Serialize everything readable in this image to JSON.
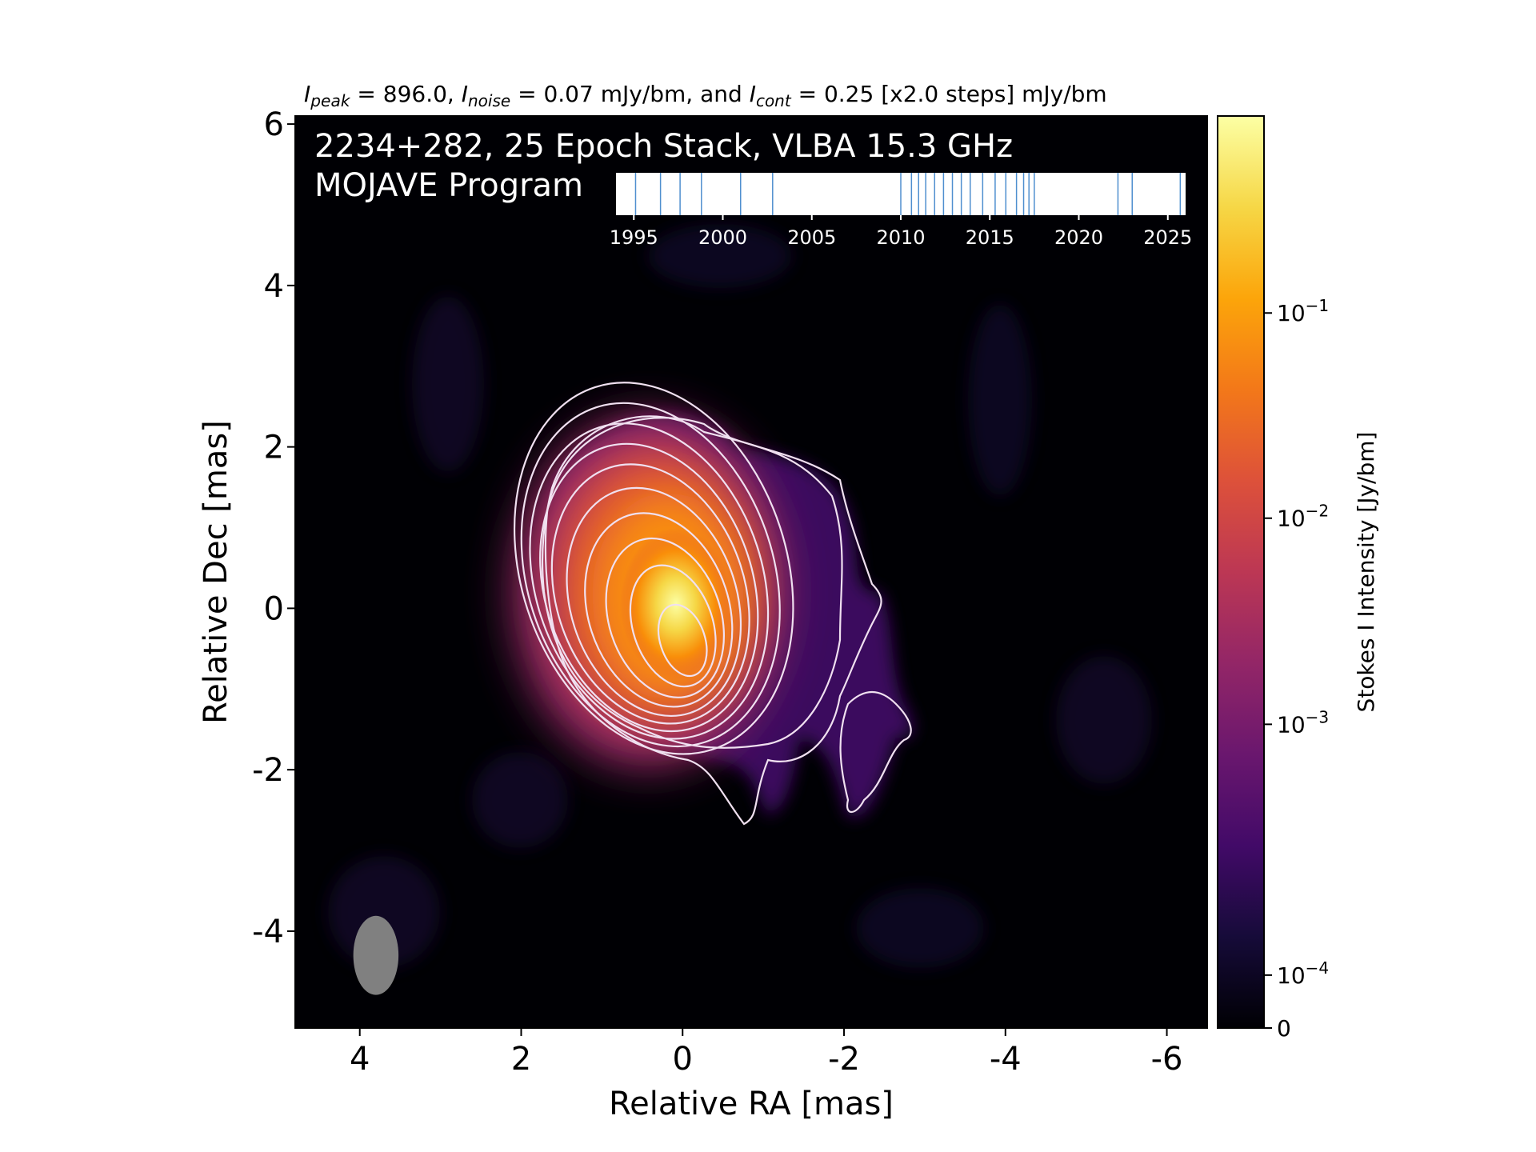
{
  "chart_data": {
    "type": "heatmap",
    "title_parts": {
      "peak_sym": "I",
      "peak_sub": "peak",
      "peak_text": " = 896.0, ",
      "noise_sym": "I",
      "noise_sub": "noise",
      "noise_text": " = 0.07 mJy/bm, and ",
      "cont_sym": "I",
      "cont_sub": "cont",
      "cont_text": " = 0.25 [x2.0 steps] mJy/bm"
    },
    "annotation_line1": "2234+282, 25 Epoch Stack, VLBA 15.3 GHz",
    "annotation_line2": "MOJAVE Program",
    "xlabel": "Relative RA [mas]",
    "ylabel": "Relative Dec [mas]",
    "xlim": [
      4.8,
      -6.5
    ],
    "ylim": [
      -5.2,
      6.1
    ],
    "xticks": [
      {
        "value": 4,
        "label": "4"
      },
      {
        "value": 2,
        "label": "2"
      },
      {
        "value": 0,
        "label": "0"
      },
      {
        "value": -2,
        "label": "-2"
      },
      {
        "value": -4,
        "label": "-4"
      },
      {
        "value": -6,
        "label": "-6"
      }
    ],
    "yticks": [
      {
        "value": 6,
        "label": "6"
      },
      {
        "value": 4,
        "label": "4"
      },
      {
        "value": 2,
        "label": "2"
      },
      {
        "value": 0,
        "label": "0"
      },
      {
        "value": -2,
        "label": "-2"
      },
      {
        "value": -4,
        "label": "-4"
      }
    ],
    "colorbar": {
      "label": "Stokes I Intensity [Jy/bm]",
      "colormap": "inferno",
      "scale": "symlog",
      "ticks": [
        {
          "frac": 0.0,
          "base": "0",
          "exp": ""
        },
        {
          "frac": 0.058,
          "base": "10",
          "exp": "−4"
        },
        {
          "frac": 0.333,
          "base": "10",
          "exp": "−3"
        },
        {
          "frac": 0.559,
          "base": "10",
          "exp": "−2"
        },
        {
          "frac": 0.784,
          "base": "10",
          "exp": "−1"
        }
      ]
    },
    "peak_position": [
      0.0,
      0.0
    ],
    "contour_color": "#f0e0f0",
    "beam": {
      "ra": 3.8,
      "dec": -4.3,
      "width_mas": 0.56,
      "height_mas": 0.98,
      "color": "#808080"
    },
    "epoch_inset": {
      "xlim": [
        1994.0,
        2026.0
      ],
      "ticks": [
        {
          "value": 1995,
          "label": "1995"
        },
        {
          "value": 2000,
          "label": "2000"
        },
        {
          "value": 2005,
          "label": "2005"
        },
        {
          "value": 2010,
          "label": "2010"
        },
        {
          "value": 2015,
          "label": "2015"
        },
        {
          "value": 2020,
          "label": "2020"
        },
        {
          "value": 2025,
          "label": "2025"
        }
      ],
      "epochs": [
        1995.1,
        1996.5,
        1997.6,
        1998.8,
        2001.0,
        2002.8,
        2010.0,
        2010.6,
        2011.0,
        2011.4,
        2011.9,
        2012.4,
        2012.9,
        2013.4,
        2013.9,
        2014.6,
        2015.3,
        2015.9,
        2016.5,
        2016.9,
        2017.2,
        2017.5,
        2022.2,
        2023.0,
        2025.7
      ],
      "line_color": "#4f8fcf"
    }
  }
}
